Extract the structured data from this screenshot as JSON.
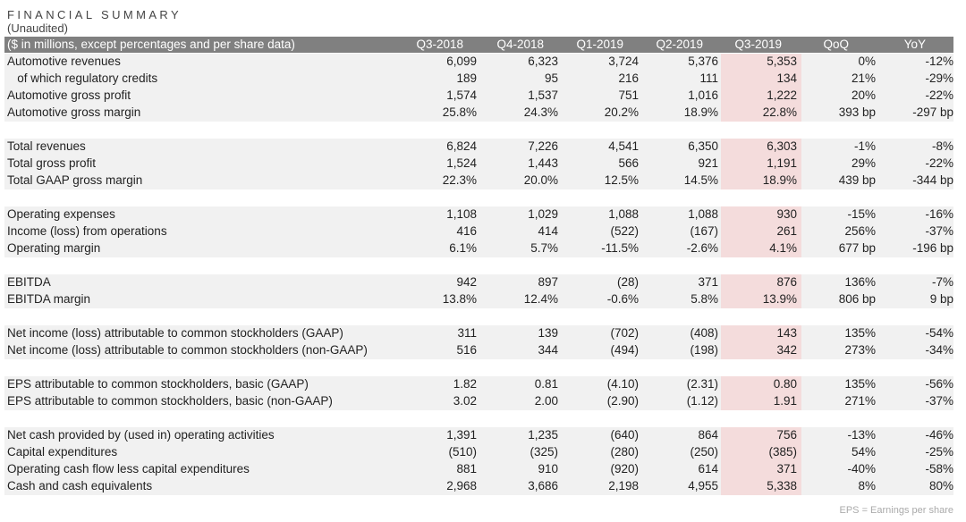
{
  "title": "FINANCIAL SUMMARY",
  "subtitle": "(Unaudited)",
  "header": {
    "label": "($ in millions, except percentages and per share data)",
    "columns": [
      "Q3-2018",
      "Q4-2018",
      "Q1-2019",
      "Q2-2019",
      "Q3-2019",
      "QoQ",
      "YoY"
    ]
  },
  "groups": [
    {
      "rows": [
        {
          "label": "Automotive revenues",
          "values": [
            "6,099",
            "6,323",
            "3,724",
            "5,376",
            "5,353",
            "0%",
            "-12%"
          ]
        },
        {
          "label": "   of which regulatory credits",
          "values": [
            "189",
            "95",
            "216",
            "111",
            "134",
            "21%",
            "-29%"
          ]
        },
        {
          "label": "Automotive gross profit",
          "values": [
            "1,574",
            "1,537",
            "751",
            "1,016",
            "1,222",
            "20%",
            "-22%"
          ]
        },
        {
          "label": "Automotive gross margin",
          "values": [
            "25.8%",
            "24.3%",
            "20.2%",
            "18.9%",
            "22.8%",
            "393 bp",
            "-297 bp"
          ]
        }
      ]
    },
    {
      "rows": [
        {
          "label": "Total revenues",
          "values": [
            "6,824",
            "7,226",
            "4,541",
            "6,350",
            "6,303",
            "-1%",
            "-8%"
          ]
        },
        {
          "label": "Total gross profit",
          "values": [
            "1,524",
            "1,443",
            "566",
            "921",
            "1,191",
            "29%",
            "-22%"
          ]
        },
        {
          "label": "Total GAAP gross margin",
          "values": [
            "22.3%",
            "20.0%",
            "12.5%",
            "14.5%",
            "18.9%",
            "439 bp",
            "-344 bp"
          ]
        }
      ]
    },
    {
      "rows": [
        {
          "label": "Operating expenses",
          "values": [
            "1,108",
            "1,029",
            "1,088",
            "1,088",
            "930",
            "-15%",
            "-16%"
          ]
        },
        {
          "label": "Income (loss) from operations",
          "values": [
            "416",
            "414",
            "(522)",
            "(167)",
            "261",
            "256%",
            "-37%"
          ]
        },
        {
          "label": "Operating margin",
          "values": [
            "6.1%",
            "5.7%",
            "-11.5%",
            "-2.6%",
            "4.1%",
            "677 bp",
            "-196 bp"
          ]
        }
      ]
    },
    {
      "rows": [
        {
          "label": "EBITDA",
          "values": [
            "942",
            "897",
            "(28)",
            "371",
            "876",
            "136%",
            "-7%"
          ]
        },
        {
          "label": "EBITDA margin",
          "values": [
            "13.8%",
            "12.4%",
            "-0.6%",
            "5.8%",
            "13.9%",
            "806 bp",
            "9 bp"
          ]
        }
      ]
    },
    {
      "rows": [
        {
          "label": "Net income (loss) attributable to common stockholders (GAAP)",
          "values": [
            "311",
            "139",
            "(702)",
            "(408)",
            "143",
            "135%",
            "-54%"
          ]
        },
        {
          "label": "Net income (loss) attributable to common stockholders (non-GAAP)",
          "values": [
            "516",
            "344",
            "(494)",
            "(198)",
            "342",
            "273%",
            "-34%"
          ]
        }
      ]
    },
    {
      "rows": [
        {
          "label": "EPS attributable to common stockholders, basic (GAAP)",
          "values": [
            "1.82",
            "0.81",
            "(4.10)",
            "(2.31)",
            "0.80",
            "135%",
            "-56%"
          ]
        },
        {
          "label": "EPS attributable to common stockholders, basic (non-GAAP)",
          "values": [
            "3.02",
            "2.00",
            "(2.90)",
            "(1.12)",
            "1.91",
            "271%",
            "-37%"
          ]
        }
      ]
    },
    {
      "rows": [
        {
          "label": "Net cash provided by (used in) operating activities",
          "values": [
            "1,391",
            "1,235",
            "(640)",
            "864",
            "756",
            "-13%",
            "-46%"
          ]
        },
        {
          "label": "Capital expenditures",
          "values": [
            "(510)",
            "(325)",
            "(280)",
            "(250)",
            "(385)",
            "54%",
            "-25%"
          ]
        },
        {
          "label": "Operating cash flow less capital expenditures",
          "values": [
            "881",
            "910",
            "(920)",
            "614",
            "371",
            "-40%",
            "-58%"
          ]
        },
        {
          "label": "Cash and cash equivalents",
          "values": [
            "2,968",
            "3,686",
            "2,198",
            "4,955",
            "5,338",
            "8%",
            "80%"
          ]
        }
      ]
    }
  ],
  "footnote": "EPS = Earnings per share",
  "colors": {
    "header_bg": "#808080",
    "row_shade": "#f1f1f1",
    "highlight_column": "#f4dcdc"
  }
}
